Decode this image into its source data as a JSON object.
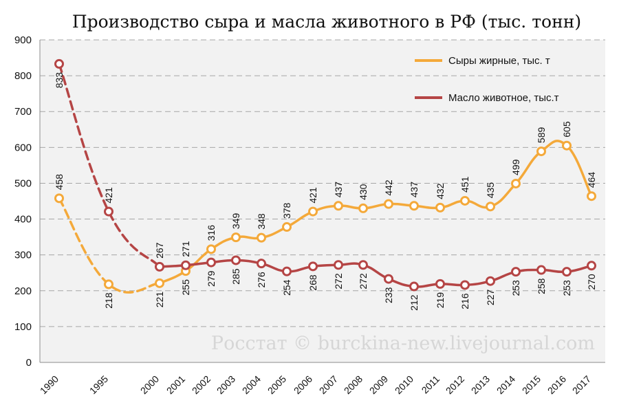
{
  "chart_data": {
    "type": "line",
    "title": "Производство сыра и масла животного в РФ (тыс. тонн)",
    "xlabel": "",
    "ylabel": "",
    "ylim": [
      0,
      900
    ],
    "yticks": [
      "0",
      "100",
      "200",
      "300",
      "400",
      "500",
      "600",
      "700",
      "800",
      "900"
    ],
    "grid": true,
    "legend_position": "top-right",
    "categories": [
      "1990",
      "1995",
      "2000",
      "2001",
      "2002",
      "2003",
      "2004",
      "2005",
      "2006",
      "2007",
      "2008",
      "2009",
      "2010",
      "2011",
      "2012",
      "2013",
      "2014",
      "2015",
      "2016",
      "2017"
    ],
    "series": [
      {
        "name": "Сыры жирные, тыс. т",
        "color": "#f4a93a",
        "values": [
          458,
          218,
          221,
          255,
          316,
          349,
          348,
          378,
          421,
          437,
          430,
          442,
          437,
          432,
          451,
          435,
          499,
          589,
          605,
          464
        ]
      },
      {
        "name": "Масло животное, тыс.т",
        "color": "#b54545",
        "values": [
          833,
          421,
          267,
          271,
          279,
          285,
          276,
          254,
          268,
          272,
          272,
          233,
          212,
          219,
          216,
          227,
          253,
          258,
          253,
          270
        ]
      }
    ]
  },
  "watermark": "Росстат © burckina-new.livejournal.com",
  "colors": {
    "plot_bg": "#f2f2f2",
    "grid": "#a6a6a6"
  }
}
